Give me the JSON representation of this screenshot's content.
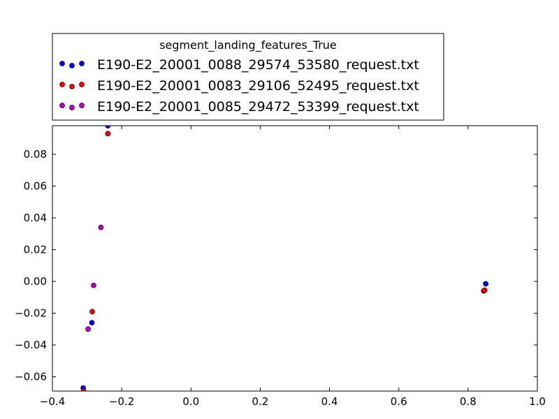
{
  "chart_data": {
    "type": "scatter",
    "title": "",
    "xlabel": "",
    "ylabel": "",
    "xlim": [
      -0.4,
      1.0
    ],
    "ylim": [
      -0.069,
      0.098
    ],
    "xticks": [
      "−0.4",
      "−0.2",
      "0.0",
      "0.2",
      "0.4",
      "0.6",
      "0.8",
      "1.0"
    ],
    "yticks": [
      "−0.06",
      "−0.04",
      "−0.02",
      "0.00",
      "0.02",
      "0.04",
      "0.06",
      "0.08"
    ],
    "grid": false,
    "legend": {
      "title": "segment_landing_features_True",
      "placement": "above-top-left"
    },
    "series": [
      {
        "name": "E190-E2_20001_0088_29574_53580_request.txt",
        "color": "#0000ff",
        "points": [
          {
            "x": -0.24,
            "y": 0.098
          },
          {
            "x": -0.286,
            "y": -0.026
          },
          {
            "x": -0.311,
            "y": -0.067
          },
          {
            "x": 0.851,
            "y": -0.0015
          }
        ]
      },
      {
        "name": "E190-E2_20001_0083_29106_52495_request.txt",
        "color": "#ff0000",
        "points": [
          {
            "x": -0.24,
            "y": 0.093
          },
          {
            "x": -0.285,
            "y": -0.019
          },
          {
            "x": -0.31,
            "y": -0.069
          },
          {
            "x": 0.845,
            "y": -0.006
          },
          {
            "x": 0.848,
            "y": -0.0055
          }
        ]
      },
      {
        "name": "E190-E2_20001_0085_29472_53399_request.txt",
        "color": "#bf00bf",
        "points": [
          {
            "x": -0.26,
            "y": 0.034
          },
          {
            "x": -0.281,
            "y": -0.0025
          },
          {
            "x": -0.297,
            "y": -0.03
          }
        ]
      }
    ]
  }
}
